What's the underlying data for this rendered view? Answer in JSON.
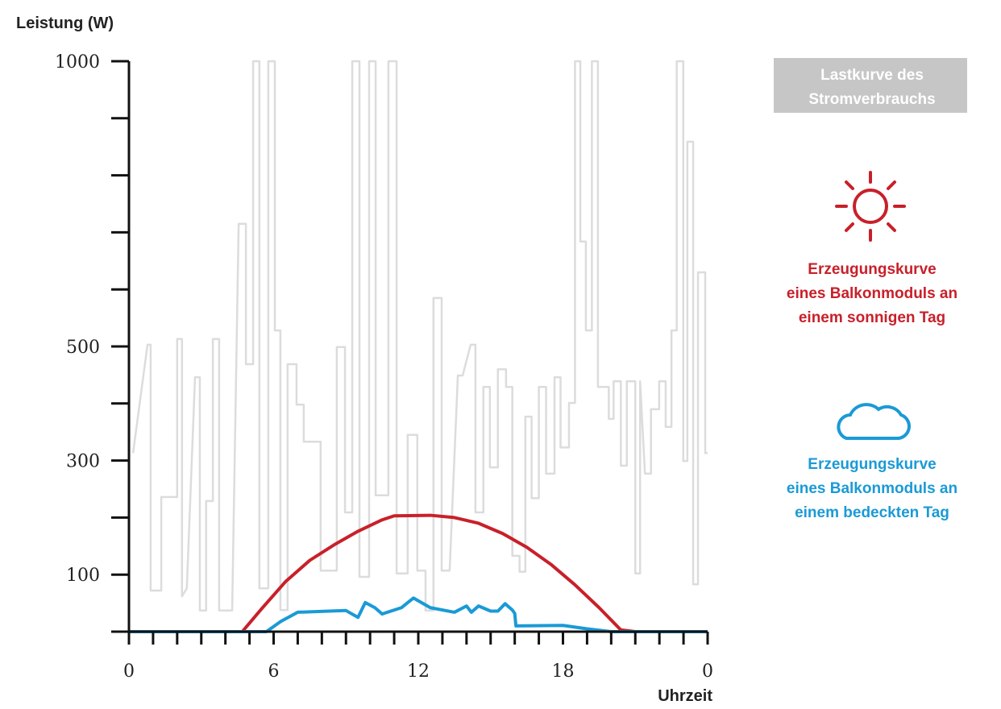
{
  "chart_data": {
    "type": "line",
    "y_label": "Leistung (W)",
    "x_label": "Uhrzeit",
    "xlim": [
      0,
      24
    ],
    "ylim": [
      0,
      1000
    ],
    "xticks": [
      0,
      6,
      12,
      18,
      {
        "value": 24,
        "label": "0"
      }
    ],
    "xtick_marks": [
      0,
      1,
      2,
      3,
      4,
      5,
      6,
      7,
      8,
      9,
      10,
      11,
      12,
      13,
      14,
      15,
      16,
      17,
      18,
      19,
      20,
      21,
      22,
      23,
      24
    ],
    "yticks": [
      100,
      300,
      500,
      1000
    ],
    "ytick_marks": [
      0,
      100,
      200,
      300,
      400,
      500,
      600,
      700,
      800,
      900,
      1000
    ],
    "series": [
      {
        "name": [
          "Lastkurve des",
          "Stromverbrauchs"
        ],
        "color": "#dcdcdc",
        "x": [
          0.17,
          0.77,
          0.9,
          0.9,
          1.34,
          1.34,
          2.0,
          2.0,
          2.2,
          2.2,
          2.4,
          2.74,
          2.94,
          2.94,
          3.2,
          3.2,
          3.48,
          3.48,
          3.74,
          3.74,
          4.28,
          4.55,
          4.85,
          4.85,
          5.15,
          5.15,
          5.41,
          5.41,
          5.78,
          5.78,
          6.05,
          6.05,
          6.28,
          6.28,
          6.58,
          6.58,
          6.95,
          6.95,
          7.25,
          7.25,
          7.95,
          7.95,
          8.62,
          8.62,
          8.96,
          8.96,
          9.26,
          9.26,
          9.56,
          9.56,
          9.96,
          9.96,
          10.23,
          10.23,
          10.76,
          10.76,
          11.1,
          11.1,
          11.56,
          11.56,
          11.96,
          11.96,
          12.3,
          12.3,
          12.63,
          12.63,
          12.97,
          12.97,
          13.3,
          13.64,
          13.84,
          14.17,
          14.37,
          14.37,
          14.7,
          14.7,
          14.97,
          14.97,
          15.3,
          15.3,
          15.64,
          15.64,
          15.9,
          15.9,
          16.2,
          16.2,
          16.44,
          16.44,
          16.7,
          16.7,
          17.0,
          17.0,
          17.3,
          17.3,
          17.65,
          17.65,
          17.9,
          17.9,
          18.25,
          18.25,
          18.5,
          18.5,
          18.72,
          18.72,
          18.95,
          18.95,
          19.2,
          19.2,
          19.45,
          19.45,
          19.9,
          19.9,
          20.1,
          20.1,
          20.4,
          20.4,
          20.65,
          20.65,
          21.0,
          21.0,
          21.2,
          21.2,
          21.4,
          21.65,
          21.65,
          21.99,
          21.99,
          22.26,
          22.26,
          22.5,
          22.5,
          22.72,
          22.72,
          22.99,
          22.99,
          23.16,
          23.16,
          23.4,
          23.4,
          23.6,
          23.6,
          23.9,
          23.9,
          24.0
        ],
        "values": [
          313,
          503,
          503,
          72,
          72,
          236,
          236,
          513,
          513,
          62,
          76,
          446,
          446,
          37,
          37,
          229,
          229,
          513,
          513,
          37,
          37,
          715,
          715,
          469,
          469,
          1000,
          1000,
          76,
          76,
          1000,
          1000,
          528,
          528,
          38,
          38,
          469,
          469,
          398,
          398,
          333,
          333,
          107,
          107,
          499,
          499,
          209,
          209,
          1000,
          1000,
          96,
          96,
          1000,
          1000,
          239,
          239,
          1000,
          1000,
          102,
          102,
          345,
          345,
          107,
          107,
          37,
          37,
          585,
          585,
          107,
          107,
          449,
          449,
          503,
          503,
          209,
          209,
          429,
          429,
          288,
          288,
          460,
          460,
          429,
          429,
          133,
          133,
          105,
          105,
          377,
          377,
          234,
          234,
          429,
          429,
          277,
          277,
          446,
          446,
          323,
          323,
          401,
          401,
          1000,
          1000,
          684,
          684,
          528,
          528,
          1000,
          1000,
          429,
          429,
          373,
          373,
          439,
          439,
          291,
          291,
          439,
          439,
          102,
          102,
          439,
          277,
          277,
          390,
          390,
          439,
          439,
          359,
          359,
          528,
          528,
          1000,
          1000,
          299,
          299,
          859,
          859,
          83,
          83,
          630,
          630,
          313,
          313
        ]
      },
      {
        "name": [
          "Erzeugungskurve",
          "eines Balkonmoduls an",
          "einem sonnigen Tag"
        ],
        "color": "#c8202a",
        "x": [
          0,
          4.7,
          5.5,
          6.5,
          7.5,
          8.5,
          9.5,
          10.5,
          11,
          12.5,
          13.5,
          14.5,
          15.5,
          16.5,
          17.5,
          18.5,
          19.5,
          20.4,
          21,
          24
        ],
        "values": [
          0,
          0,
          40,
          88,
          125,
          152,
          176,
          196,
          203,
          204,
          200,
          190,
          172,
          148,
          118,
          82,
          42,
          3,
          0,
          0
        ]
      },
      {
        "name": [
          "Erzeugungskurve",
          "eines Balkonmoduls an",
          "einem bedeckten Tag"
        ],
        "color": "#1a9ad6",
        "x": [
          0,
          5.7,
          6.3,
          7,
          9,
          9.5,
          9.8,
          10.2,
          10.5,
          11.3,
          11.8,
          12.5,
          13.5,
          14,
          14.2,
          14.5,
          15,
          15.3,
          15.6,
          15.9,
          16,
          16.05,
          18,
          19,
          20,
          24
        ],
        "values": [
          0,
          0,
          18,
          34,
          37,
          25,
          51,
          42,
          31,
          42,
          59,
          42,
          34,
          45,
          34,
          45,
          36,
          36,
          49,
          38,
          32,
          10,
          11,
          5,
          0,
          0
        ]
      }
    ]
  }
}
